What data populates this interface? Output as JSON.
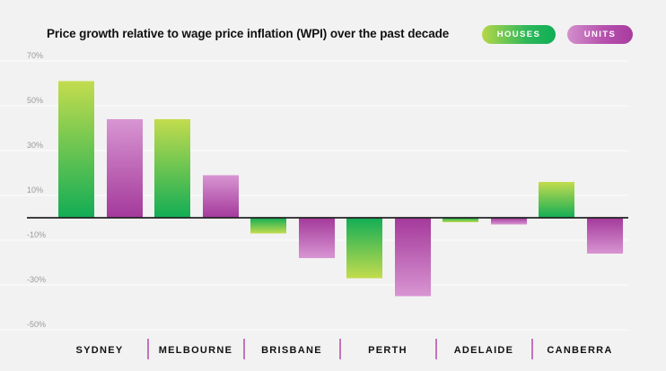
{
  "chart_data": {
    "type": "bar",
    "title": "Price growth relative to wage price inflation (WPI) over the past decade",
    "categories": [
      "SYDNEY",
      "MELBOURNE",
      "BRISBANE",
      "PERTH",
      "ADELAIDE",
      "CANBERRA"
    ],
    "series": [
      {
        "name": "HOUSES",
        "values": [
          61,
          44,
          -7,
          -27,
          -2,
          16
        ]
      },
      {
        "name": "UNITS",
        "values": [
          44,
          19,
          -18,
          -35,
          -3,
          -16
        ]
      }
    ],
    "yticks": [
      "70%",
      "50%",
      "30%",
      "10%",
      "-10%",
      "-30%",
      "-50%"
    ],
    "ylim": [
      -50,
      70
    ],
    "grid": true,
    "legend_position": "top-right",
    "colors": {
      "houses_light": "#c3dc4e",
      "houses_dark": "#12ad55",
      "units_light": "#d895d2",
      "units_dark": "#a4399b",
      "zero_line": "#222222",
      "separator": "#b24aa8"
    }
  }
}
